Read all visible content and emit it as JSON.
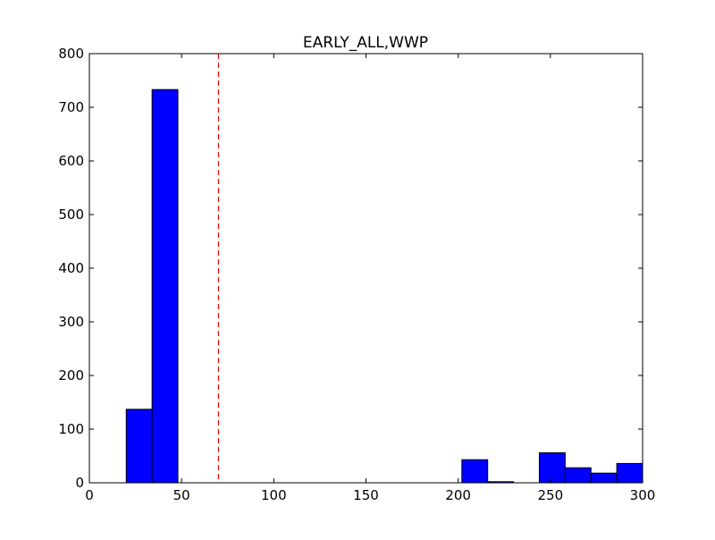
{
  "chart_data": {
    "type": "bar",
    "title": "EARLY_ALL,WWP",
    "xlabel": "",
    "ylabel": "",
    "xlim": [
      0,
      300
    ],
    "ylim": [
      0,
      800
    ],
    "xticks": [
      0,
      50,
      100,
      150,
      200,
      250,
      300
    ],
    "yticks": [
      0,
      100,
      200,
      300,
      400,
      500,
      600,
      700,
      800
    ],
    "bin_width": 14,
    "bins": [
      {
        "x0": 20,
        "x1": 34,
        "value": 137
      },
      {
        "x0": 34,
        "x1": 48,
        "value": 733
      },
      {
        "x0": 48,
        "x1": 62,
        "value": 0
      },
      {
        "x0": 62,
        "x1": 76,
        "value": 0
      },
      {
        "x0": 76,
        "x1": 90,
        "value": 0
      },
      {
        "x0": 90,
        "x1": 104,
        "value": 0
      },
      {
        "x0": 104,
        "x1": 118,
        "value": 0
      },
      {
        "x0": 118,
        "x1": 132,
        "value": 0
      },
      {
        "x0": 132,
        "x1": 146,
        "value": 0
      },
      {
        "x0": 146,
        "x1": 160,
        "value": 0
      },
      {
        "x0": 160,
        "x1": 174,
        "value": 0
      },
      {
        "x0": 174,
        "x1": 188,
        "value": 0
      },
      {
        "x0": 188,
        "x1": 202,
        "value": 0
      },
      {
        "x0": 202,
        "x1": 216,
        "value": 43
      },
      {
        "x0": 216,
        "x1": 230,
        "value": 2
      },
      {
        "x0": 230,
        "x1": 244,
        "value": 0
      },
      {
        "x0": 244,
        "x1": 258,
        "value": 56
      },
      {
        "x0": 258,
        "x1": 272,
        "value": 28
      },
      {
        "x0": 272,
        "x1": 286,
        "value": 18
      },
      {
        "x0": 286,
        "x1": 300,
        "value": 36
      }
    ],
    "reference_line": {
      "x": 70,
      "color": "#ff0000",
      "style": "dashed"
    },
    "bar_color": "#0000ff",
    "grid": false
  }
}
